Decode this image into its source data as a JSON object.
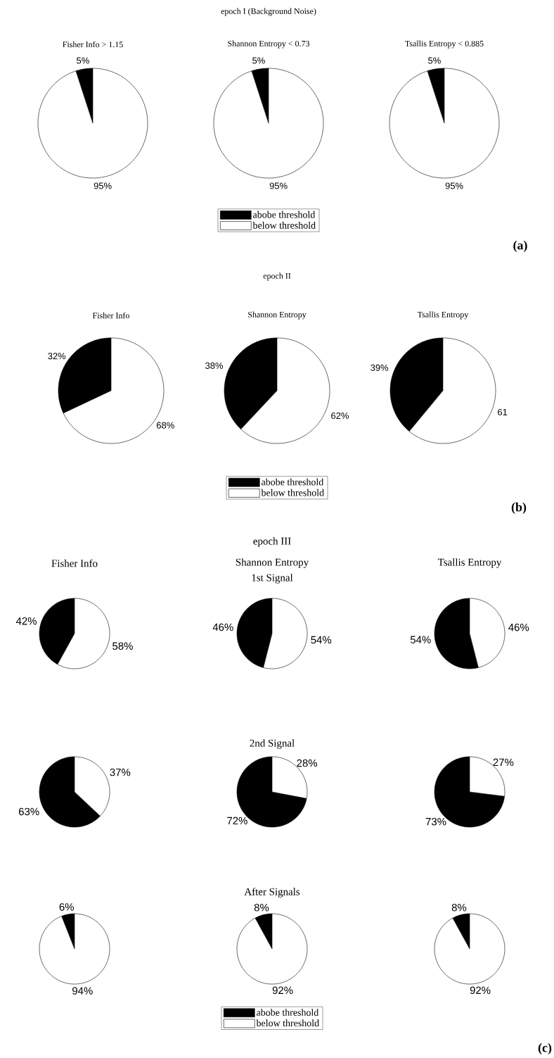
{
  "chart_data": [
    {
      "type": "pie",
      "title": "Fisher Info > 1.15",
      "categories": [
        null,
        null
      ],
      "values": [
        5,
        95
      ],
      "colors": [
        "#000000",
        "#ffffff"
      ],
      "value_labels": [
        "5%",
        "95%"
      ]
    },
    {
      "type": "pie",
      "title": "Shannon Entropy < 0.73",
      "categories": [
        "abobe threshold",
        "below threshold"
      ],
      "values": [
        5,
        95
      ],
      "colors": [
        "#000000",
        "#ffffff"
      ],
      "value_labels": [
        "5%",
        "95%"
      ],
      "annotations": [
        "epoch I (Background Noise)"
      ],
      "legend": "bottom"
    },
    {
      "type": "pie",
      "title": "Tsallis Entropy < 0.885",
      "categories": [
        null,
        null
      ],
      "values": [
        5,
        95
      ],
      "colors": [
        "#000000",
        "#ffffff"
      ],
      "value_labels": [
        "5%",
        "95%"
      ],
      "annotations": [
        "(a)"
      ]
    },
    {
      "type": "pie",
      "title": "Fisher Info",
      "categories": [
        null,
        null
      ],
      "values": [
        32,
        68
      ],
      "colors": [
        "#000000",
        "#ffffff"
      ],
      "value_labels": [
        "32%",
        "68%"
      ]
    },
    {
      "type": "pie",
      "title": "Shannon Entropy",
      "categories": [
        "abobe threshold",
        "below threshold"
      ],
      "values": [
        38,
        62
      ],
      "colors": [
        "#000000",
        "#ffffff"
      ],
      "value_labels": [
        "38%",
        "62%"
      ],
      "annotations": [
        "epoch II"
      ],
      "legend": "bottom"
    },
    {
      "type": "pie",
      "title": "Tsallis Entropy",
      "categories": [
        null,
        null
      ],
      "values": [
        39,
        61
      ],
      "colors": [
        "#000000",
        "#ffffff"
      ],
      "value_labels": [
        "39%",
        "61"
      ],
      "annotations": [
        "(b)"
      ]
    },
    {
      "type": "pie",
      "title": "Fisher Info",
      "categories": [
        null,
        null
      ],
      "values": [
        42,
        58
      ],
      "colors": [
        "#000000",
        "#ffffff"
      ],
      "value_labels": [
        "42%",
        "58%"
      ]
    },
    {
      "type": "pie",
      "title": "Shannon Entropy",
      "subtitle": "1st Signal",
      "categories": [
        null,
        null
      ],
      "values": [
        46,
        54
      ],
      "colors": [
        "#000000",
        "#ffffff"
      ],
      "value_labels": [
        "46%",
        "54%"
      ],
      "annotations": [
        "epoch III"
      ]
    },
    {
      "type": "pie",
      "title": "Tsallis Entropy",
      "categories": [
        null,
        null
      ],
      "values": [
        54,
        46
      ],
      "colors": [
        "#000000",
        "#ffffff"
      ],
      "value_labels": [
        "54%",
        "46%"
      ]
    },
    {
      "type": "pie",
      "categories": [
        null,
        null
      ],
      "values": [
        63,
        37
      ],
      "colors": [
        "#000000",
        "#ffffff"
      ],
      "value_labels": [
        "63%",
        "37%"
      ]
    },
    {
      "type": "pie",
      "title": "2nd Signal",
      "categories": [
        null,
        null
      ],
      "values": [
        72,
        28
      ],
      "colors": [
        "#000000",
        "#ffffff"
      ],
      "value_labels": [
        "72%",
        "28%"
      ]
    },
    {
      "type": "pie",
      "categories": [
        null,
        null
      ],
      "values": [
        73,
        27
      ],
      "colors": [
        "#000000",
        "#ffffff"
      ],
      "value_labels": [
        "73%",
        "27%"
      ]
    },
    {
      "type": "pie",
      "categories": [
        null,
        null
      ],
      "values": [
        6,
        94
      ],
      "colors": [
        "#000000",
        "#ffffff"
      ],
      "value_labels": [
        "6%",
        "94%"
      ]
    },
    {
      "type": "pie",
      "title": "After Signals",
      "categories": [
        "abobe threshold",
        "below threshold"
      ],
      "values": [
        8,
        92
      ],
      "colors": [
        "#000000",
        "#ffffff"
      ],
      "value_labels": [
        "8%",
        "92%"
      ],
      "legend": "bottom"
    },
    {
      "type": "pie",
      "categories": [
        null,
        null
      ],
      "values": [
        8,
        92
      ],
      "colors": [
        "#000000",
        "#ffffff"
      ],
      "value_labels": [
        "8%",
        "92%"
      ],
      "annotations": [
        "(c)"
      ]
    }
  ]
}
